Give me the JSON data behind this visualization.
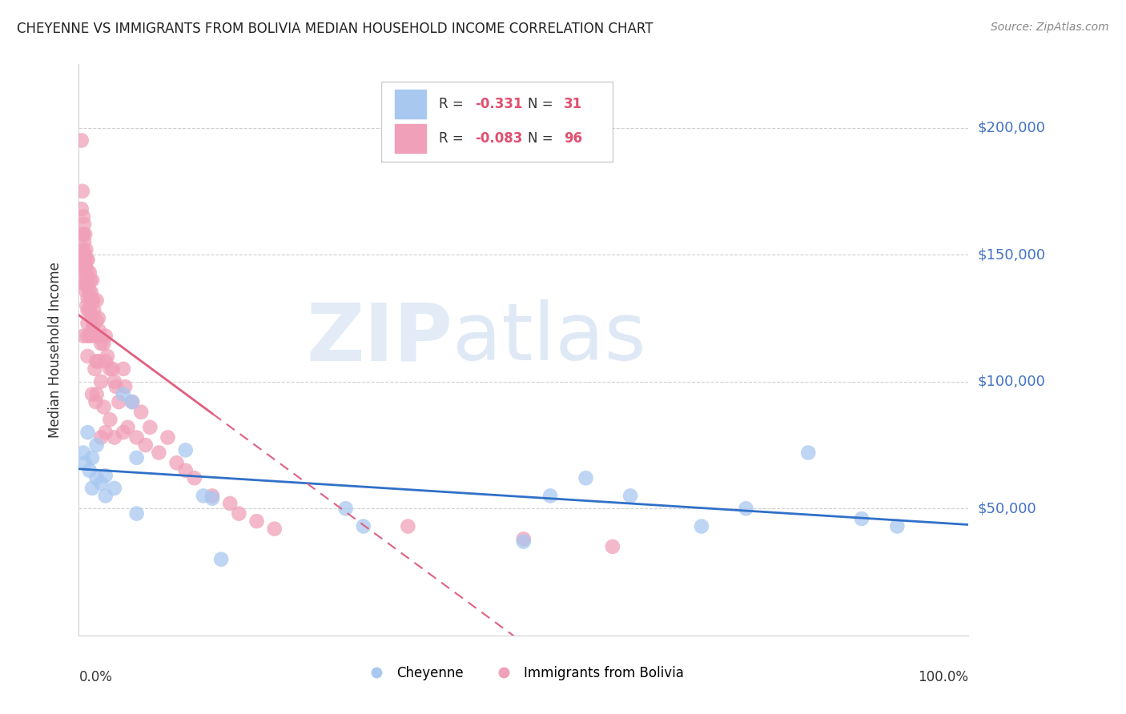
{
  "title": "CHEYENNE VS IMMIGRANTS FROM BOLIVIA MEDIAN HOUSEHOLD INCOME CORRELATION CHART",
  "source": "Source: ZipAtlas.com",
  "ylabel": "Median Household Income",
  "legend_label_blue": "Cheyenne",
  "legend_label_pink": "Immigrants from Bolivia",
  "blue_color": "#A8C8F0",
  "pink_color": "#F0A0B8",
  "blue_line_color": "#3070C8",
  "pink_line_color": "#E06080",
  "watermark_zip": "ZIP",
  "watermark_atlas": "atlas",
  "ytick_labels": [
    "$50,000",
    "$100,000",
    "$150,000",
    "$200,000"
  ],
  "ytick_values": [
    50000,
    100000,
    150000,
    200000
  ],
  "ylim": [
    0,
    225000
  ],
  "xlim": [
    0,
    1.0
  ],
  "blue_r": "-0.331",
  "blue_n": "31",
  "pink_r": "-0.083",
  "pink_n": "96",
  "blue_x": [
    0.005,
    0.007,
    0.01,
    0.012,
    0.015,
    0.015,
    0.02,
    0.02,
    0.025,
    0.03,
    0.03,
    0.04,
    0.05,
    0.06,
    0.065,
    0.065,
    0.12,
    0.14,
    0.15,
    0.16,
    0.3,
    0.32,
    0.5,
    0.53,
    0.57,
    0.62,
    0.7,
    0.75,
    0.82,
    0.88,
    0.92
  ],
  "blue_y": [
    72000,
    68000,
    80000,
    65000,
    70000,
    58000,
    75000,
    62000,
    60000,
    63000,
    55000,
    58000,
    95000,
    92000,
    70000,
    48000,
    73000,
    55000,
    54000,
    30000,
    50000,
    43000,
    37000,
    55000,
    62000,
    55000,
    43000,
    50000,
    72000,
    46000,
    43000
  ],
  "pink_x": [
    0.003,
    0.003,
    0.004,
    0.004,
    0.004,
    0.005,
    0.005,
    0.005,
    0.005,
    0.005,
    0.005,
    0.006,
    0.006,
    0.006,
    0.007,
    0.007,
    0.007,
    0.007,
    0.008,
    0.008,
    0.008,
    0.009,
    0.009,
    0.009,
    0.01,
    0.01,
    0.01,
    0.01,
    0.01,
    0.01,
    0.01,
    0.01,
    0.012,
    0.012,
    0.012,
    0.013,
    0.013,
    0.013,
    0.014,
    0.015,
    0.015,
    0.015,
    0.015,
    0.015,
    0.016,
    0.016,
    0.017,
    0.018,
    0.018,
    0.019,
    0.02,
    0.02,
    0.02,
    0.02,
    0.02,
    0.022,
    0.022,
    0.023,
    0.025,
    0.025,
    0.025,
    0.028,
    0.028,
    0.03,
    0.03,
    0.03,
    0.032,
    0.035,
    0.035,
    0.038,
    0.04,
    0.04,
    0.042,
    0.045,
    0.05,
    0.05,
    0.052,
    0.055,
    0.06,
    0.065,
    0.07,
    0.075,
    0.08,
    0.09,
    0.1,
    0.11,
    0.12,
    0.13,
    0.15,
    0.17,
    0.18,
    0.2,
    0.22,
    0.37,
    0.5,
    0.6
  ],
  "pink_y": [
    195000,
    168000,
    175000,
    158000,
    150000,
    165000,
    158000,
    152000,
    145000,
    140000,
    118000,
    162000,
    155000,
    148000,
    158000,
    150000,
    143000,
    136000,
    152000,
    145000,
    138000,
    148000,
    140000,
    130000,
    148000,
    143000,
    138000,
    133000,
    128000,
    123000,
    118000,
    110000,
    143000,
    136000,
    128000,
    140000,
    133000,
    118000,
    135000,
    140000,
    132000,
    126000,
    120000,
    95000,
    132000,
    122000,
    128000,
    118000,
    105000,
    92000,
    132000,
    124000,
    118000,
    108000,
    95000,
    125000,
    108000,
    120000,
    115000,
    100000,
    78000,
    115000,
    90000,
    118000,
    108000,
    80000,
    110000,
    105000,
    85000,
    105000,
    100000,
    78000,
    98000,
    92000,
    105000,
    80000,
    98000,
    82000,
    92000,
    78000,
    88000,
    75000,
    82000,
    72000,
    78000,
    68000,
    65000,
    62000,
    55000,
    52000,
    48000,
    45000,
    42000,
    43000,
    38000,
    35000
  ]
}
